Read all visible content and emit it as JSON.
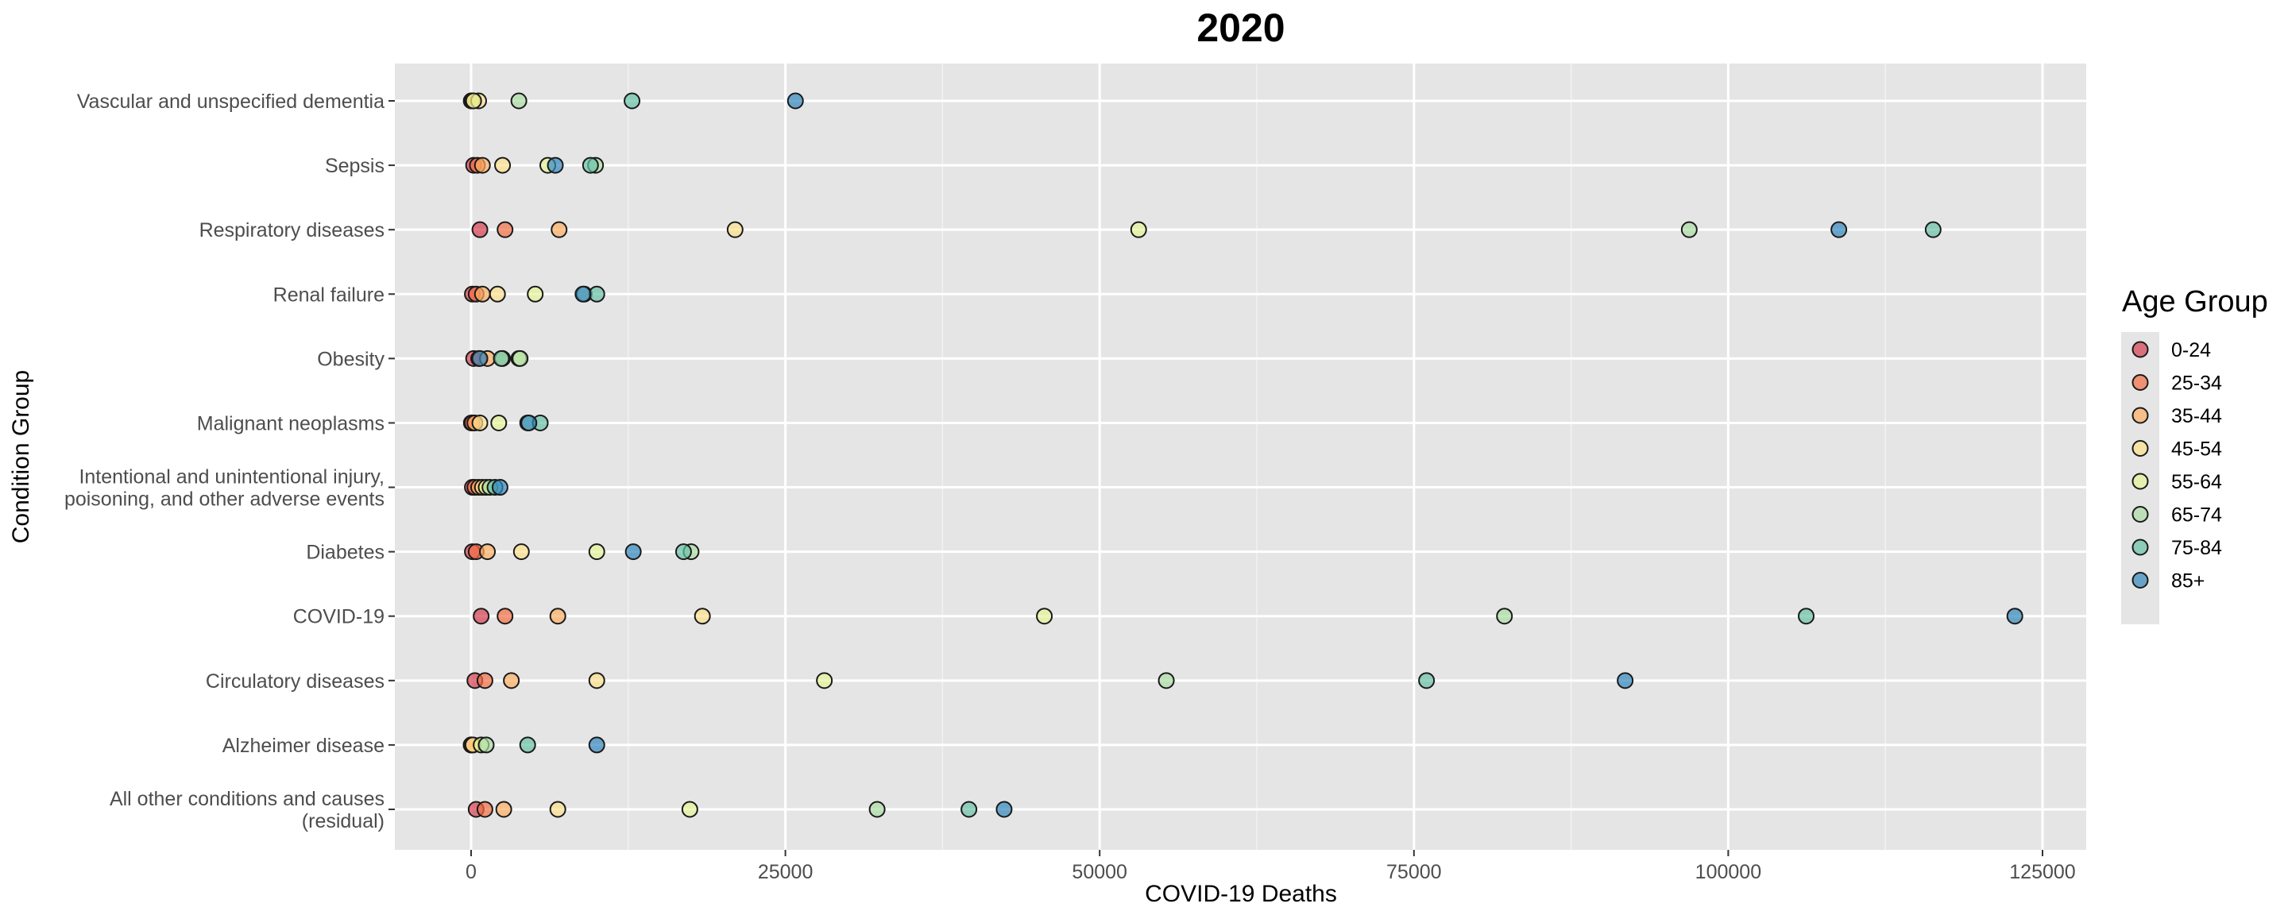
{
  "chart_data": {
    "type": "scatter",
    "title": "2020",
    "xlabel": "COVID-19 Deaths",
    "ylabel": "Condition Group",
    "xlim": [
      -3000,
      128000
    ],
    "x_ticks": [
      0,
      25000,
      50000,
      75000,
      100000,
      125000
    ],
    "x_tick_labels": [
      "0",
      "25000",
      "50000",
      "75000",
      "100000",
      "125000"
    ],
    "grid": true,
    "legend": {
      "title": "Age Group",
      "position": "right"
    },
    "categories": [
      "Vascular and unspecified dementia",
      "Sepsis",
      "Respiratory diseases",
      "Renal failure",
      "Obesity",
      "Malignant neoplasms",
      "Intentional and unintentional injury,\npoisoning, and other adverse events",
      "Diabetes",
      "COVID-19",
      "Circulatory diseases",
      "Alzheimer disease",
      "All other conditions and causes\n(residual)"
    ],
    "series": [
      {
        "name": "0-24",
        "color": "#D53E4F",
        "values": [
          10,
          200,
          700,
          100,
          200,
          20,
          100,
          100,
          800,
          300,
          5,
          400
        ]
      },
      {
        "name": "25-34",
        "color": "#F46D43",
        "values": [
          40,
          500,
          2700,
          400,
          600,
          100,
          300,
          400,
          2700,
          1100,
          10,
          1100
        ]
      },
      {
        "name": "35-44",
        "color": "#FDAE61",
        "values": [
          100,
          900,
          7000,
          900,
          1300,
          300,
          600,
          1300,
          6900,
          3200,
          20,
          2600
        ]
      },
      {
        "name": "45-54",
        "color": "#FEE08B",
        "values": [
          600,
          2500,
          21000,
          2100,
          2500,
          700,
          900,
          4000,
          18400,
          10000,
          150,
          6900
        ]
      },
      {
        "name": "55-64",
        "color": "#E6F598",
        "values": [
          200,
          6100,
          53100,
          5100,
          3800,
          2200,
          1200,
          10000,
          45600,
          28100,
          800,
          17400
        ]
      },
      {
        "name": "65-74",
        "color": "#ABDDA4",
        "values": [
          3800,
          9900,
          96900,
          9000,
          3900,
          4500,
          1500,
          17500,
          82200,
          55300,
          1200,
          32300
        ]
      },
      {
        "name": "75-84",
        "color": "#66C2A5",
        "values": [
          12800,
          9500,
          116300,
          10000,
          2400,
          5500,
          1900,
          16900,
          106200,
          76000,
          4500,
          39600
        ]
      },
      {
        "name": "85+",
        "color": "#3288BD",
        "values": [
          25800,
          6700,
          108800,
          8900,
          700,
          4600,
          2300,
          12900,
          122800,
          91800,
          10000,
          42400
        ]
      }
    ]
  }
}
